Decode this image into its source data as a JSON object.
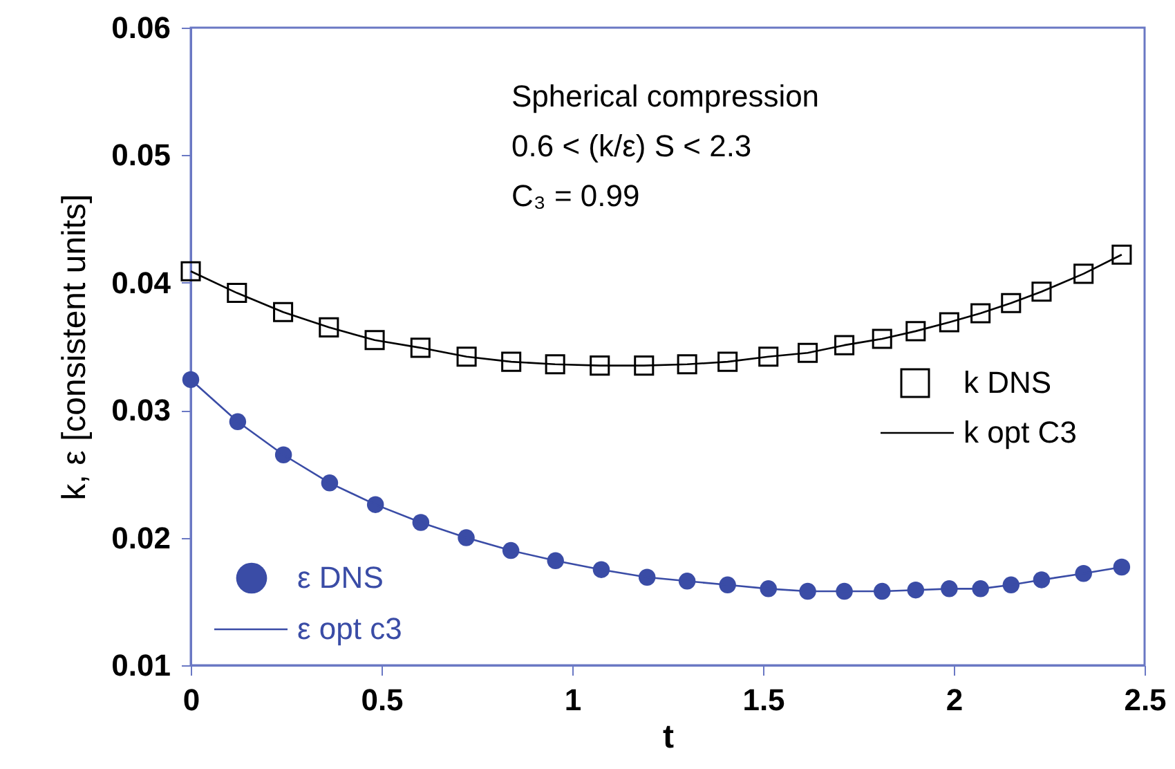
{
  "chart_data": {
    "type": "scatter",
    "xlabel": "t",
    "ylabel": "k, ε [consistent units]",
    "annotations": [
      "Spherical compression",
      "0.6 < (k/ε) S  < 2.3",
      "C₃ = 0.99"
    ],
    "xlim": [
      0,
      2.5
    ],
    "xticks": [
      0,
      0.5,
      1,
      1.5,
      2,
      2.5
    ],
    "ylim": [
      0.01,
      0.06
    ],
    "yticks": [
      {
        "value": 0.01,
        "label": "0.01"
      },
      {
        "value": 0.02,
        "label": "0.02"
      },
      {
        "value": 0.03,
        "label": "0.03"
      },
      {
        "value": 0.04,
        "label": "0.04"
      },
      {
        "value": 0.05,
        "label": "0.05"
      },
      {
        "value": 0.06,
        "label": "0.06"
      }
    ],
    "grid": false,
    "legend": "right",
    "series": [
      {
        "name": "k DNS",
        "marker": "square",
        "color": "#000000",
        "x": [
          0,
          0.121,
          0.242,
          0.362,
          0.482,
          0.602,
          0.723,
          0.84,
          0.955,
          1.072,
          1.188,
          1.301,
          1.407,
          1.514,
          1.617,
          1.713,
          1.812,
          1.9,
          1.988,
          2.07,
          2.15,
          2.23,
          2.34,
          2.44
        ],
        "values": [
          0.0409,
          0.0392,
          0.0377,
          0.0365,
          0.0355,
          0.0349,
          0.0342,
          0.0338,
          0.0336,
          0.0335,
          0.0335,
          0.0336,
          0.0338,
          0.0342,
          0.0345,
          0.0351,
          0.0356,
          0.0362,
          0.0369,
          0.0376,
          0.0384,
          0.0393,
          0.0407,
          0.0422
        ]
      },
      {
        "name": "k opt C3",
        "type": "line",
        "line_style": "solid",
        "color": "#000000",
        "x": [
          0,
          0.121,
          0.242,
          0.362,
          0.482,
          0.602,
          0.723,
          0.84,
          0.955,
          1.072,
          1.188,
          1.301,
          1.407,
          1.514,
          1.617,
          1.713,
          1.812,
          1.9,
          1.988,
          2.07,
          2.15,
          2.23,
          2.34,
          2.44
        ],
        "values": [
          0.0409,
          0.0392,
          0.0377,
          0.0365,
          0.0355,
          0.0349,
          0.0342,
          0.0338,
          0.0336,
          0.0335,
          0.0335,
          0.0336,
          0.0338,
          0.0342,
          0.0345,
          0.0351,
          0.0356,
          0.0362,
          0.0369,
          0.0376,
          0.0384,
          0.0393,
          0.0407,
          0.0422
        ]
      },
      {
        "name": "ε DNS",
        "marker": "circle",
        "color": "#3a4ca6",
        "x": [
          0,
          0.123,
          0.243,
          0.364,
          0.484,
          0.603,
          0.722,
          0.839,
          0.956,
          1.076,
          1.196,
          1.301,
          1.407,
          1.514,
          1.617,
          1.713,
          1.812,
          1.9,
          1.988,
          2.07,
          2.15,
          2.23,
          2.34,
          2.44
        ],
        "values": [
          0.0324,
          0.0291,
          0.0265,
          0.0243,
          0.0226,
          0.0212,
          0.02,
          0.019,
          0.0182,
          0.0175,
          0.0169,
          0.0166,
          0.0163,
          0.016,
          0.0158,
          0.0158,
          0.0158,
          0.0159,
          0.016,
          0.016,
          0.0163,
          0.0167,
          0.0172,
          0.0177
        ]
      },
      {
        "name": "ε  opt c3",
        "type": "line",
        "line_style": "solid",
        "color": "#3a4ca6",
        "x": [
          0,
          0.123,
          0.243,
          0.364,
          0.484,
          0.603,
          0.722,
          0.839,
          0.956,
          1.076,
          1.196,
          1.301,
          1.407,
          1.514,
          1.617,
          1.713,
          1.812,
          1.9,
          1.988,
          2.07,
          2.15,
          2.23,
          2.34,
          2.44
        ],
        "values": [
          0.0324,
          0.0291,
          0.0265,
          0.0243,
          0.0226,
          0.0212,
          0.02,
          0.019,
          0.0182,
          0.0175,
          0.0169,
          0.0166,
          0.0163,
          0.016,
          0.0158,
          0.0158,
          0.0158,
          0.0159,
          0.016,
          0.016,
          0.0163,
          0.0167,
          0.0172,
          0.0177
        ]
      }
    ]
  }
}
